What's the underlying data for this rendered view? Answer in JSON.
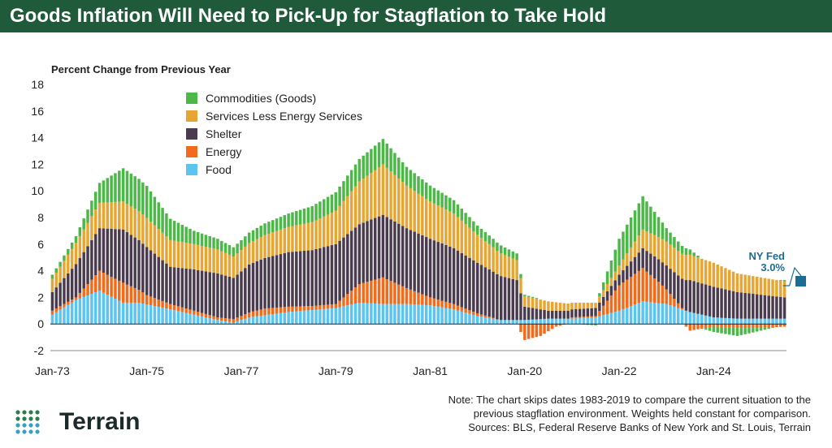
{
  "header": {
    "title": "Goods Inflation Will Need to Pick-Up for Stagflation to Take Hold"
  },
  "brand": {
    "name": "Terrain"
  },
  "notes": [
    "Note: The chart skips dates 1983-2019 to compare the current situation to the",
    "previous stagflation environment. Weights held constant for comparison.",
    "Sources: BLS, Federal Reserve Banks of New York and St. Louis, Terrain"
  ],
  "colors": {
    "header_bg": "#1f5a3a",
    "food": "#5bc4f1",
    "energy": "#f26a1b",
    "shelter": "#4a3b4f",
    "services": "#e7a634",
    "commodities": "#4cb848",
    "ny_fed_marker": "#1b6d96",
    "ny_fed_text": "#1b6d96"
  },
  "chart_data": {
    "type": "bar",
    "stacked": true,
    "title": "Goods Inflation Will Need to Pick-Up for Stagflation to Take Hold",
    "ylabel": "Percent Change from Previous Year",
    "xlabel": "",
    "ylim": [
      -2,
      18
    ],
    "yticks": [
      -2,
      0,
      2,
      4,
      6,
      8,
      10,
      12,
      14,
      16,
      18
    ],
    "xtick_labels": [
      {
        "label": "Jan-73",
        "index": 0
      },
      {
        "label": "Jan-75",
        "index": 24
      },
      {
        "label": "Jan-77",
        "index": 48
      },
      {
        "label": "Jan-79",
        "index": 72
      },
      {
        "label": "Jan-81",
        "index": 96
      },
      {
        "label": "Jan-20",
        "index": 120
      },
      {
        "label": "Jan-22",
        "index": 144
      },
      {
        "label": "Jan-24",
        "index": 168
      }
    ],
    "legend": [
      "Commodities (Goods)",
      "Services Less Energy Services",
      "Shelter",
      "Energy",
      "Food"
    ],
    "legend_position": "top-left",
    "series_order": [
      "food",
      "energy",
      "shelter",
      "services",
      "commodities"
    ],
    "series_names": {
      "food": "Food",
      "energy": "Energy",
      "shelter": "Shelter",
      "services": "Services Less Energy Services",
      "commodities": "Commodities (Goods)"
    },
    "anchors": {
      "food": [
        [
          0,
          0.7
        ],
        [
          6,
          1.8
        ],
        [
          12,
          2.5
        ],
        [
          18,
          1.6
        ],
        [
          22,
          1.6
        ],
        [
          30,
          1.1
        ],
        [
          36,
          0.7
        ],
        [
          42,
          0.3
        ],
        [
          46,
          0.1
        ],
        [
          50,
          0.5
        ],
        [
          60,
          0.9
        ],
        [
          72,
          1.2
        ],
        [
          78,
          1.6
        ],
        [
          84,
          1.5
        ],
        [
          90,
          1.5
        ],
        [
          96,
          1.4
        ],
        [
          102,
          1.1
        ],
        [
          108,
          0.6
        ],
        [
          114,
          0.3
        ],
        [
          118,
          0.3
        ],
        [
          120,
          0.3
        ],
        [
          126,
          0.4
        ],
        [
          132,
          0.4
        ],
        [
          138,
          0.5
        ],
        [
          144,
          1.0
        ],
        [
          150,
          1.7
        ],
        [
          156,
          1.5
        ],
        [
          162,
          0.9
        ],
        [
          168,
          0.5
        ],
        [
          174,
          0.4
        ],
        [
          180,
          0.4
        ],
        [
          186,
          0.4
        ]
      ],
      "energy": [
        [
          0,
          0.3
        ],
        [
          6,
          0.2
        ],
        [
          12,
          1.5
        ],
        [
          18,
          1.5
        ],
        [
          24,
          0.7
        ],
        [
          30,
          0.4
        ],
        [
          36,
          0.3
        ],
        [
          42,
          0.2
        ],
        [
          48,
          0.3
        ],
        [
          54,
          0.5
        ],
        [
          60,
          0.4
        ],
        [
          66,
          0.3
        ],
        [
          72,
          0.3
        ],
        [
          78,
          1.4
        ],
        [
          84,
          2.0
        ],
        [
          90,
          1.2
        ],
        [
          96,
          0.6
        ],
        [
          102,
          0.4
        ],
        [
          108,
          0.2
        ],
        [
          114,
          0.0
        ],
        [
          118,
          0.0
        ],
        [
          120,
          -1.2
        ],
        [
          124,
          -0.9
        ],
        [
          128,
          -0.2
        ],
        [
          132,
          0.1
        ],
        [
          138,
          0.1
        ],
        [
          144,
          1.9
        ],
        [
          150,
          2.5
        ],
        [
          154,
          1.6
        ],
        [
          160,
          0.1
        ],
        [
          162,
          -0.5
        ],
        [
          168,
          -0.2
        ],
        [
          174,
          -0.3
        ],
        [
          180,
          -0.3
        ],
        [
          186,
          -0.2
        ]
      ],
      "shelter": [
        [
          0,
          1.4
        ],
        [
          6,
          2.5
        ],
        [
          12,
          3.2
        ],
        [
          18,
          4.0
        ],
        [
          24,
          3.6
        ],
        [
          30,
          2.8
        ],
        [
          36,
          3.1
        ],
        [
          42,
          3.3
        ],
        [
          46,
          3.1
        ],
        [
          50,
          3.6
        ],
        [
          60,
          4.1
        ],
        [
          66,
          4.2
        ],
        [
          72,
          4.5
        ],
        [
          78,
          4.5
        ],
        [
          84,
          4.7
        ],
        [
          90,
          4.5
        ],
        [
          96,
          4.4
        ],
        [
          102,
          4.2
        ],
        [
          108,
          3.8
        ],
        [
          114,
          3.3
        ],
        [
          118,
          3.0
        ],
        [
          120,
          1.0
        ],
        [
          126,
          0.6
        ],
        [
          132,
          0.6
        ],
        [
          138,
          0.6
        ],
        [
          144,
          0.8
        ],
        [
          150,
          1.5
        ],
        [
          156,
          1.8
        ],
        [
          162,
          2.4
        ],
        [
          168,
          2.3
        ],
        [
          174,
          2.0
        ],
        [
          180,
          1.8
        ],
        [
          186,
          1.6
        ]
      ],
      "services": [
        [
          0,
          1.0
        ],
        [
          6,
          1.6
        ],
        [
          12,
          1.9
        ],
        [
          18,
          2.1
        ],
        [
          24,
          2.2
        ],
        [
          30,
          2.0
        ],
        [
          36,
          1.9
        ],
        [
          42,
          1.8
        ],
        [
          46,
          1.6
        ],
        [
          50,
          1.6
        ],
        [
          60,
          1.9
        ],
        [
          66,
          2.1
        ],
        [
          72,
          2.5
        ],
        [
          78,
          3.2
        ],
        [
          84,
          3.8
        ],
        [
          90,
          3.2
        ],
        [
          96,
          2.8
        ],
        [
          102,
          2.6
        ],
        [
          108,
          2.1
        ],
        [
          114,
          1.7
        ],
        [
          118,
          1.5
        ],
        [
          120,
          0.8
        ],
        [
          126,
          0.7
        ],
        [
          132,
          0.5
        ],
        [
          138,
          0.4
        ],
        [
          144,
          0.7
        ],
        [
          150,
          1.4
        ],
        [
          156,
          1.8
        ],
        [
          162,
          1.9
        ],
        [
          168,
          1.8
        ],
        [
          174,
          1.4
        ],
        [
          180,
          1.3
        ],
        [
          186,
          1.2
        ]
      ],
      "commodities": [
        [
          0,
          0.3
        ],
        [
          6,
          0.5
        ],
        [
          12,
          1.5
        ],
        [
          18,
          2.5
        ],
        [
          24,
          2.4
        ],
        [
          30,
          1.6
        ],
        [
          36,
          1.0
        ],
        [
          42,
          0.8
        ],
        [
          46,
          0.7
        ],
        [
          50,
          0.8
        ],
        [
          60,
          1.0
        ],
        [
          66,
          1.2
        ],
        [
          72,
          1.4
        ],
        [
          78,
          1.7
        ],
        [
          84,
          1.9
        ],
        [
          90,
          1.4
        ],
        [
          96,
          1.2
        ],
        [
          102,
          1.0
        ],
        [
          108,
          0.7
        ],
        [
          114,
          0.6
        ],
        [
          118,
          0.5
        ],
        [
          120,
          0.1
        ],
        [
          126,
          0.0
        ],
        [
          132,
          0.0
        ],
        [
          138,
          -0.1
        ],
        [
          144,
          2.0
        ],
        [
          150,
          2.5
        ],
        [
          156,
          1.0
        ],
        [
          162,
          0.4
        ],
        [
          168,
          -0.4
        ],
        [
          174,
          -0.6
        ],
        [
          180,
          -0.2
        ],
        [
          186,
          0.1
        ]
      ]
    },
    "annotation": {
      "label_line1": "NY Fed",
      "label_line2": "3.0%",
      "value": 3.0
    }
  }
}
